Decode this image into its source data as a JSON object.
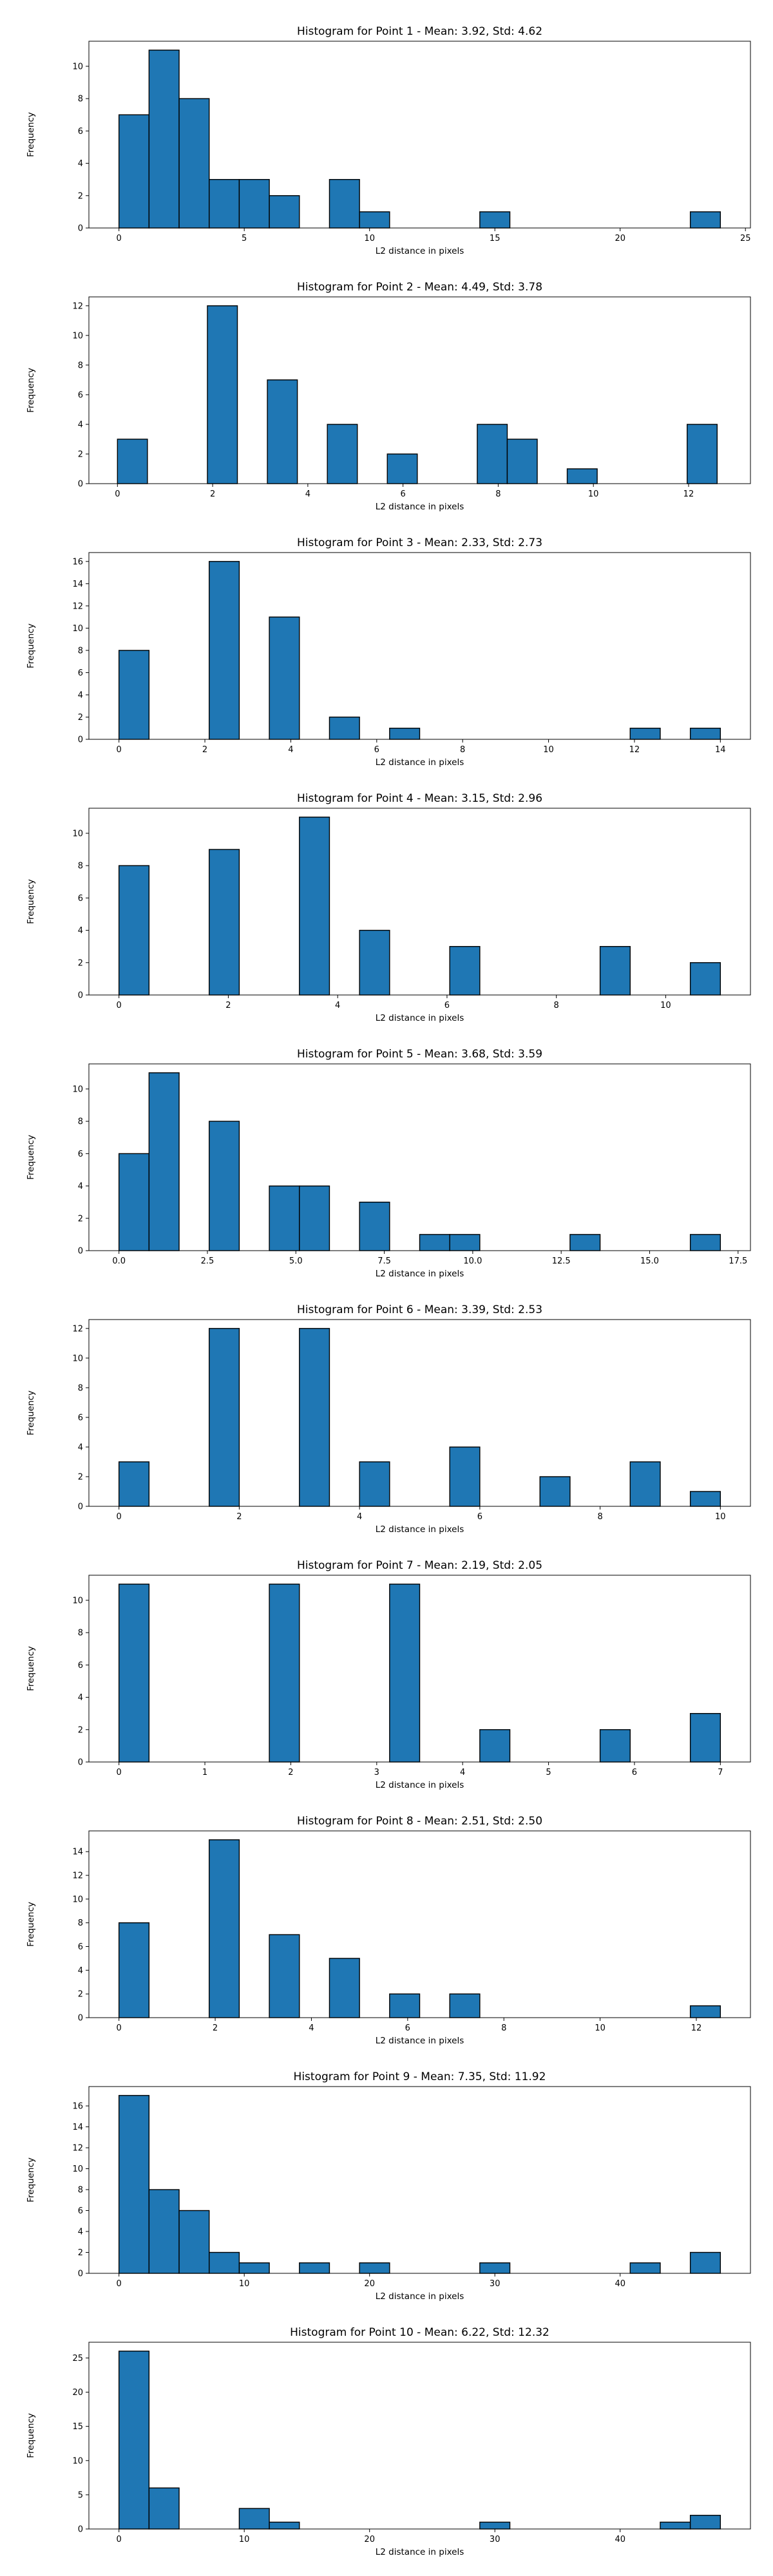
{
  "figure": {
    "background": "#ffffff",
    "bar_color": "#1f77b4",
    "edge_color": "#000000"
  },
  "chart_data": [
    {
      "type": "bar",
      "title": "Histogram for Point 1 - Mean: 3.92, Std: 4.62",
      "xlabel": "L2 distance in pixels",
      "ylabel": "Frequency",
      "xlim": [
        -1.2,
        25.2
      ],
      "ylim": [
        0,
        11.55
      ],
      "xticks": [
        0,
        5,
        10,
        15,
        20,
        25
      ],
      "xtick_labels": [
        "0",
        "5",
        "10",
        "15",
        "20",
        "25"
      ],
      "yticks": [
        0,
        2,
        4,
        6,
        8,
        10
      ],
      "ytick_labels": [
        "0",
        "2",
        "4",
        "6",
        "8",
        "10"
      ],
      "bin_start": 0,
      "bin_width": 1.2,
      "values": [
        7,
        11,
        8,
        3,
        3,
        2,
        0,
        3,
        1,
        0,
        0,
        0,
        1,
        0,
        0,
        0,
        0,
        0,
        0,
        1
      ]
    },
    {
      "type": "bar",
      "title": "Histogram for Point 2 - Mean: 4.49, Std: 3.78",
      "xlabel": "L2 distance in pixels",
      "ylabel": "Frequency",
      "xlim": [
        -0.6,
        13.3
      ],
      "ylim": [
        0,
        12.6
      ],
      "xticks": [
        0,
        2,
        4,
        6,
        8,
        10,
        12
      ],
      "xtick_labels": [
        "0",
        "2",
        "4",
        "6",
        "8",
        "10",
        "12"
      ],
      "yticks": [
        0,
        2,
        4,
        6,
        8,
        10,
        12
      ],
      "ytick_labels": [
        "0",
        "2",
        "4",
        "6",
        "8",
        "10",
        "12"
      ],
      "bin_start": 0,
      "bin_width": 0.63,
      "values": [
        3,
        0,
        0,
        12,
        0,
        7,
        0,
        4,
        0,
        2,
        0,
        0,
        4,
        3,
        0,
        1,
        0,
        0,
        0,
        4
      ]
    },
    {
      "type": "bar",
      "title": "Histogram for Point 3 - Mean: 2.33, Std: 2.73",
      "xlabel": "L2 distance in pixels",
      "ylabel": "Frequency",
      "xlim": [
        -0.7,
        14.7
      ],
      "ylim": [
        0,
        16.8
      ],
      "xticks": [
        0,
        2,
        4,
        6,
        8,
        10,
        12,
        14
      ],
      "xtick_labels": [
        "0",
        "2",
        "4",
        "6",
        "8",
        "10",
        "12",
        "14"
      ],
      "yticks": [
        0,
        2,
        4,
        6,
        8,
        10,
        12,
        14,
        16
      ],
      "ytick_labels": [
        "0",
        "2",
        "4",
        "6",
        "8",
        "10",
        "12",
        "14",
        "16"
      ],
      "bin_start": 0,
      "bin_width": 0.7,
      "values": [
        8,
        0,
        0,
        16,
        0,
        11,
        0,
        2,
        0,
        1,
        0,
        0,
        0,
        0,
        0,
        0,
        0,
        1,
        0,
        1
      ]
    },
    {
      "type": "bar",
      "title": "Histogram for Point 4 - Mean: 3.15, Std: 2.96",
      "xlabel": "L2 distance in pixels",
      "ylabel": "Frequency",
      "xlim": [
        -0.55,
        11.55
      ],
      "ylim": [
        0,
        11.55
      ],
      "xticks": [
        0,
        2,
        4,
        6,
        8,
        10
      ],
      "xtick_labels": [
        "0",
        "2",
        "4",
        "6",
        "8",
        "10"
      ],
      "yticks": [
        0,
        2,
        4,
        6,
        8,
        10
      ],
      "ytick_labels": [
        "0",
        "2",
        "4",
        "6",
        "8",
        "10"
      ],
      "bin_start": 0,
      "bin_width": 0.55,
      "values": [
        8,
        0,
        0,
        9,
        0,
        0,
        11,
        0,
        4,
        0,
        0,
        3,
        0,
        0,
        0,
        0,
        3,
        0,
        0,
        2
      ]
    },
    {
      "type": "bar",
      "title": "Histogram for Point 5 - Mean: 3.68, Std: 3.59",
      "xlabel": "L2 distance in pixels",
      "ylabel": "Frequency",
      "xlim": [
        -0.85,
        17.85
      ],
      "ylim": [
        0,
        11.55
      ],
      "xticks": [
        0,
        2.5,
        5,
        7.5,
        10,
        12.5,
        15,
        17.5
      ],
      "xtick_labels": [
        "0.0",
        "2.5",
        "5.0",
        "7.5",
        "10.0",
        "12.5",
        "15.0",
        "17.5"
      ],
      "yticks": [
        0,
        2,
        4,
        6,
        8,
        10
      ],
      "ytick_labels": [
        "0",
        "2",
        "4",
        "6",
        "8",
        "10"
      ],
      "bin_start": 0,
      "bin_width": 0.85,
      "values": [
        6,
        11,
        0,
        8,
        0,
        4,
        4,
        0,
        3,
        0,
        1,
        1,
        0,
        0,
        0,
        1,
        0,
        0,
        0,
        1
      ]
    },
    {
      "type": "bar",
      "title": "Histogram for Point 6 - Mean: 3.39, Std: 2.53",
      "xlabel": "L2 distance in pixels",
      "ylabel": "Frequency",
      "xlim": [
        -0.5,
        10.5
      ],
      "ylim": [
        0,
        12.6
      ],
      "xticks": [
        0,
        2,
        4,
        6,
        8,
        10
      ],
      "xtick_labels": [
        "0",
        "2",
        "4",
        "6",
        "8",
        "10"
      ],
      "yticks": [
        0,
        2,
        4,
        6,
        8,
        10,
        12
      ],
      "ytick_labels": [
        "0",
        "2",
        "4",
        "6",
        "8",
        "10",
        "12"
      ],
      "bin_start": 0,
      "bin_width": 0.5,
      "values": [
        3,
        0,
        0,
        12,
        0,
        0,
        12,
        0,
        3,
        0,
        0,
        4,
        0,
        0,
        2,
        0,
        0,
        3,
        0,
        1
      ]
    },
    {
      "type": "bar",
      "title": "Histogram for Point 7 - Mean: 2.19, Std: 2.05",
      "xlabel": "L2 distance in pixels",
      "ylabel": "Frequency",
      "xlim": [
        -0.35,
        7.35
      ],
      "ylim": [
        0,
        11.55
      ],
      "xticks": [
        0,
        1,
        2,
        3,
        4,
        5,
        6,
        7
      ],
      "xtick_labels": [
        "0",
        "1",
        "2",
        "3",
        "4",
        "5",
        "6",
        "7"
      ],
      "yticks": [
        0,
        2,
        4,
        6,
        8,
        10
      ],
      "ytick_labels": [
        "0",
        "2",
        "4",
        "6",
        "8",
        "10"
      ],
      "bin_start": 0,
      "bin_width": 0.35,
      "values": [
        11,
        0,
        0,
        0,
        0,
        11,
        0,
        0,
        0,
        11,
        0,
        0,
        2,
        0,
        0,
        0,
        2,
        0,
        0,
        3
      ]
    },
    {
      "type": "bar",
      "title": "Histogram for Point 8 - Mean: 2.51, Std: 2.50",
      "xlabel": "L2 distance in pixels",
      "ylabel": "Frequency",
      "xlim": [
        -0.625,
        13.125
      ],
      "ylim": [
        0,
        15.75
      ],
      "xticks": [
        0,
        2,
        4,
        6,
        8,
        10,
        12
      ],
      "xtick_labels": [
        "0",
        "2",
        "4",
        "6",
        "8",
        "10",
        "12"
      ],
      "yticks": [
        0,
        2,
        4,
        6,
        8,
        10,
        12,
        14
      ],
      "ytick_labels": [
        "0",
        "2",
        "4",
        "6",
        "8",
        "10",
        "12",
        "14"
      ],
      "bin_start": 0,
      "bin_width": 0.625,
      "values": [
        8,
        0,
        0,
        15,
        0,
        7,
        0,
        5,
        0,
        2,
        0,
        2,
        0,
        0,
        0,
        0,
        0,
        0,
        0,
        1
      ]
    },
    {
      "type": "bar",
      "title": "Histogram for Point 9 - Mean: 7.35, Std: 11.92",
      "xlabel": "L2 distance in pixels",
      "ylabel": "Frequency",
      "xlim": [
        -2.4,
        50.4
      ],
      "ylim": [
        0,
        17.85
      ],
      "xticks": [
        0,
        10,
        20,
        30,
        40
      ],
      "xtick_labels": [
        "0",
        "10",
        "20",
        "30",
        "40"
      ],
      "yticks": [
        0,
        2,
        4,
        6,
        8,
        10,
        12,
        14,
        16
      ],
      "ytick_labels": [
        "0",
        "2",
        "4",
        "6",
        "8",
        "10",
        "12",
        "14",
        "16"
      ],
      "bin_start": 0,
      "bin_width": 2.4,
      "values": [
        17,
        8,
        6,
        2,
        1,
        0,
        1,
        0,
        1,
        0,
        0,
        0,
        1,
        0,
        0,
        0,
        0,
        1,
        0,
        2
      ]
    },
    {
      "type": "bar",
      "title": "Histogram for Point 10 - Mean: 6.22, Std: 12.32",
      "xlabel": "L2 distance in pixels",
      "ylabel": "Frequency",
      "xlim": [
        -2.4,
        50.4
      ],
      "ylim": [
        0,
        27.3
      ],
      "xticks": [
        0,
        10,
        20,
        30,
        40
      ],
      "xtick_labels": [
        "0",
        "10",
        "20",
        "30",
        "40"
      ],
      "yticks": [
        0,
        5,
        10,
        15,
        20,
        25
      ],
      "ytick_labels": [
        "0",
        "5",
        "10",
        "15",
        "20",
        "25"
      ],
      "bin_start": 0,
      "bin_width": 2.4,
      "values": [
        26,
        6,
        0,
        0,
        3,
        1,
        0,
        0,
        0,
        0,
        0,
        0,
        1,
        0,
        0,
        0,
        0,
        0,
        1,
        2
      ]
    }
  ]
}
